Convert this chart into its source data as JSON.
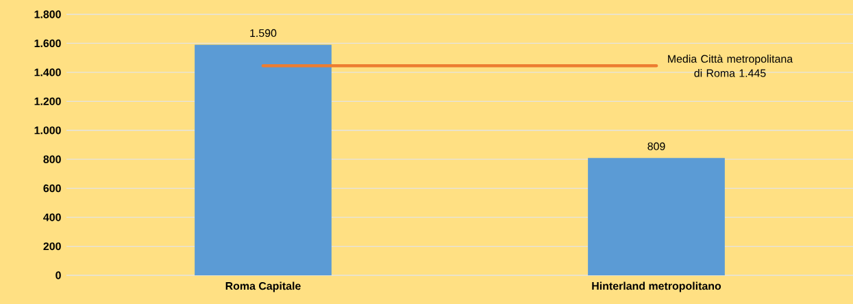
{
  "chart_data": {
    "type": "bar",
    "categories": [
      "Roma Capitale",
      "Hinterland metropolitano"
    ],
    "values": [
      1590,
      809
    ],
    "value_labels": [
      "1.590",
      "809"
    ],
    "color": "#5b9bd5",
    "ylim": [
      0,
      1800
    ],
    "yticks": [
      {
        "value": 0,
        "label": "0"
      },
      {
        "value": 200,
        "label": "200"
      },
      {
        "value": 400,
        "label": "400"
      },
      {
        "value": 600,
        "label": "600"
      },
      {
        "value": 800,
        "label": "800"
      },
      {
        "value": 1000,
        "label": "1.000"
      },
      {
        "value": 1200,
        "label": "1.200"
      },
      {
        "value": 1400,
        "label": "1.400"
      },
      {
        "value": 1600,
        "label": "1.600"
      },
      {
        "value": 1800,
        "label": "1.800"
      }
    ],
    "grid": "y",
    "ref_lines": [
      {
        "axis": "y",
        "value": 1445,
        "label": "Media Città metropolitana di Roma 1.445",
        "color": "#ed7d31"
      }
    ]
  }
}
